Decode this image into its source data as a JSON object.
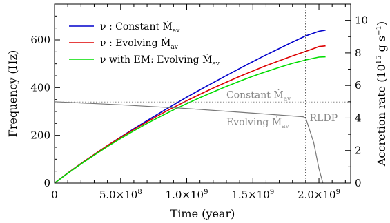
{
  "chart_data": {
    "type": "line",
    "xlabel": "Time (year)",
    "ylabel": "Frequency (Hz)",
    "ylabel_right": "Accretion rate (10",
    "ylabel_right_exp": "15",
    "ylabel_right_unit": " g s",
    "ylabel_right_unit_exp": "−1",
    "ylabel_right_close": ")",
    "xlim": [
      0,
      2240000000.0
    ],
    "ylim": [
      0,
      750
    ],
    "ylim_right": [
      0,
      11
    ],
    "x_ticks": [
      {
        "value": 0,
        "label": "0"
      },
      {
        "value": 500000000.0,
        "label": "5.0×10",
        "exp": "8"
      },
      {
        "value": 1000000000.0,
        "label": "1.0×10",
        "exp": "9"
      },
      {
        "value": 1500000000.0,
        "label": "1.5×10",
        "exp": "9"
      },
      {
        "value": 2000000000.0,
        "label": "2.0×10",
        "exp": "9"
      }
    ],
    "y_ticks": [
      {
        "value": 0,
        "label": "0"
      },
      {
        "value": 200,
        "label": "200"
      },
      {
        "value": 400,
        "label": "400"
      },
      {
        "value": 600,
        "label": "600"
      }
    ],
    "y_right_ticks": [
      {
        "value": 0,
        "label": "0"
      },
      {
        "value": 2,
        "label": "2"
      },
      {
        "value": 4,
        "label": "4"
      },
      {
        "value": 6,
        "label": "6"
      },
      {
        "value": 8,
        "label": "8"
      },
      {
        "value": 10,
        "label": "10"
      }
    ],
    "series": [
      {
        "name": "ν : Constant Ṁ",
        "name_sub": "av",
        "color": "#0000cc",
        "axis": "left",
        "x": [
          0,
          100000000.0,
          200000000.0,
          300000000.0,
          400000000.0,
          500000000.0,
          600000000.0,
          700000000.0,
          800000000.0,
          900000000.0,
          1000000000.0,
          1100000000.0,
          1200000000.0,
          1300000000.0,
          1400000000.0,
          1500000000.0,
          1600000000.0,
          1700000000.0,
          1800000000.0,
          1900000000.0,
          2000000000.0,
          2050000000.0
        ],
        "y": [
          0,
          42,
          82,
          120,
          157,
          193,
          228,
          262,
          295,
          328,
          360,
          391,
          421,
          451,
          480,
          509,
          537,
          564,
          591,
          617,
          636,
          641
        ]
      },
      {
        "name": "ν : Evolving Ṁ",
        "name_sub": "av",
        "color": "#dd0000",
        "axis": "left",
        "x": [
          0,
          100000000.0,
          200000000.0,
          300000000.0,
          400000000.0,
          500000000.0,
          600000000.0,
          700000000.0,
          800000000.0,
          900000000.0,
          1000000000.0,
          1100000000.0,
          1200000000.0,
          1300000000.0,
          1400000000.0,
          1500000000.0,
          1600000000.0,
          1700000000.0,
          1800000000.0,
          1900000000.0,
          1950000000.0,
          2000000000.0,
          2050000000.0
        ],
        "y": [
          0,
          42,
          82,
          120,
          157,
          192,
          225,
          257,
          288,
          317,
          345,
          372,
          398,
          423,
          447,
          470,
          492,
          513,
          533,
          552,
          562,
          572,
          575
        ]
      },
      {
        "name": "ν with EM: Evolving Ṁ",
        "name_sub": "av",
        "color": "#00dd00",
        "axis": "left",
        "x": [
          0,
          100000000.0,
          200000000.0,
          300000000.0,
          400000000.0,
          500000000.0,
          600000000.0,
          700000000.0,
          800000000.0,
          900000000.0,
          1000000000.0,
          1100000000.0,
          1200000000.0,
          1300000000.0,
          1400000000.0,
          1500000000.0,
          1600000000.0,
          1700000000.0,
          1800000000.0,
          1900000000.0,
          1950000000.0,
          2000000000.0,
          2050000000.0
        ],
        "y": [
          0,
          41,
          80,
          117,
          153,
          187,
          219,
          250,
          279,
          307,
          333,
          358,
          382,
          405,
          427,
          448,
          467,
          485,
          502,
          516,
          522,
          528,
          529
        ]
      },
      {
        "name": "Evolving Ṁ",
        "name_sub": "av",
        "color": "#777777",
        "axis": "right",
        "x": [
          0,
          500000000.0,
          1000000000.0,
          1500000000.0,
          1880000000.0,
          1900000000.0,
          1960000000.0,
          2000000000.0,
          2030000000.0
        ],
        "y": [
          5.0,
          4.81,
          4.58,
          4.3,
          4.08,
          4.0,
          2.5,
          0.9,
          0.0
        ]
      },
      {
        "name": "Constant Ṁ",
        "name_sub": "av",
        "color": "#888888",
        "axis": "right",
        "dashed": true,
        "x": [
          0,
          2240000000.0
        ],
        "y": [
          4.98,
          4.98
        ]
      }
    ],
    "annotations": {
      "constant": {
        "text": "Constant Ṁ",
        "sub": "av",
        "x": 1300000000.0,
        "y_right": 5.22
      },
      "evolving": {
        "text": "Evolving Ṁ",
        "sub": "av",
        "x": 1300000000.0,
        "y_right": 3.55
      },
      "rldp": {
        "text": "RLDP",
        "x": 1930000000.0,
        "y_right": 3.8
      }
    },
    "vline": {
      "x": 1900000000.0
    }
  }
}
